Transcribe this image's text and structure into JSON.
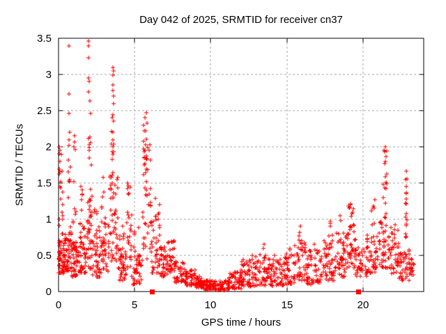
{
  "chart_data": {
    "type": "scatter",
    "title": "Day 042 of 2025, SRMTID for receiver cn37",
    "xlabel": "GPS time / hours",
    "ylabel": "SRMTID / TECUs",
    "xlim": [
      0,
      24
    ],
    "ylim": [
      0,
      3.5
    ],
    "xticks": {
      "values": [
        0,
        5,
        10,
        15,
        20
      ],
      "labels": [
        "0",
        "5",
        "10",
        "15",
        "20"
      ]
    },
    "yticks": {
      "values": [
        0,
        0.5,
        1,
        1.5,
        2,
        2.5,
        3,
        3.5
      ],
      "labels": [
        "0",
        "0.5",
        "1",
        "1.5",
        "2",
        "2.5",
        "3",
        "3.5"
      ]
    },
    "grid": {
      "show": true,
      "style": "dashed"
    },
    "legend": "none",
    "colors": {
      "points": "#ff0000",
      "grid": "#a8a8a8",
      "axis": "#000000",
      "text": "#000000",
      "background": "#ffffff"
    },
    "series": [
      {
        "name": "SRMTID values",
        "marker": "plus",
        "color": "#ff0000",
        "summary": "Dense scatter over 0-23.4 h: strong activity 0-7 h (peaks 3.39-3.46 at 0.7 h and 2.0 h, 3.1 at 3.6 h, 2.47 at 5.8 h), quiet 9-11.5 h (~0.02-0.16), moderate evening rise with peaks 1.21 at 19.2 h, 2.0 at 21.5 h, 1.66 at 22.85 h",
        "outliers": [
          [
            0.05,
            2.0
          ],
          [
            0.08,
            1.95
          ],
          [
            0.05,
            1.9
          ],
          [
            0.1,
            1.8
          ],
          [
            0.07,
            1.65
          ],
          [
            0.12,
            1.52
          ],
          [
            0.1,
            1.45
          ],
          [
            0.15,
            1.28
          ],
          [
            0.06,
            1.0
          ],
          [
            0.69,
            3.39
          ],
          [
            0.69,
            2.73
          ],
          [
            0.69,
            2.46
          ],
          [
            0.72,
            2.2
          ],
          [
            0.67,
            2.1
          ],
          [
            0.7,
            2.02
          ],
          [
            0.66,
            1.82
          ],
          [
            0.71,
            1.55
          ],
          [
            0.64,
            1.3
          ],
          [
            1.05,
            2.15
          ],
          [
            1.02,
            2.0
          ],
          [
            1.97,
            3.46
          ],
          [
            1.99,
            3.39
          ],
          [
            1.98,
            3.23
          ],
          [
            1.96,
            2.95
          ],
          [
            2.0,
            2.9
          ],
          [
            1.97,
            2.76
          ],
          [
            2.06,
            2.63
          ],
          [
            2.1,
            2.46
          ],
          [
            1.98,
            2.12
          ],
          [
            2.03,
            1.95
          ],
          [
            3.57,
            3.1
          ],
          [
            3.6,
            3.05
          ],
          [
            3.56,
            2.99
          ],
          [
            3.58,
            2.86
          ],
          [
            3.55,
            2.78
          ],
          [
            3.62,
            2.7
          ],
          [
            3.6,
            2.6
          ],
          [
            3.57,
            2.44
          ],
          [
            3.52,
            2.4
          ],
          [
            3.6,
            2.36
          ],
          [
            3.55,
            2.2
          ],
          [
            3.58,
            2.1
          ],
          [
            3.56,
            2.0
          ],
          [
            5.75,
            2.47
          ],
          [
            5.68,
            2.4
          ],
          [
            5.82,
            2.33
          ],
          [
            5.6,
            2.3
          ],
          [
            12.75,
            0.5
          ],
          [
            13.5,
            0.65
          ],
          [
            13.45,
            0.6
          ],
          [
            14.2,
            0.5
          ],
          [
            15.2,
            0.6
          ],
          [
            15.9,
            0.9
          ],
          [
            15.85,
            0.82
          ],
          [
            16.8,
            0.65
          ],
          [
            17.85,
            0.97
          ],
          [
            18.5,
            1.05
          ],
          [
            18.55,
            0.98
          ],
          [
            19.2,
            1.21
          ],
          [
            19.1,
            1.15
          ],
          [
            19.3,
            1.08
          ],
          [
            20.8,
            1.27
          ],
          [
            20.75,
            1.15
          ],
          [
            21.5,
            2.0
          ],
          [
            21.45,
            1.93
          ],
          [
            21.52,
            1.87
          ],
          [
            21.47,
            1.8
          ],
          [
            22.85,
            1.66
          ],
          [
            22.83,
            1.55
          ],
          [
            22.86,
            1.45
          ],
          [
            22.84,
            1.36
          ],
          [
            22.85,
            1.21
          ],
          [
            22.86,
            1.08
          ],
          [
            22.84,
            0.93
          ],
          [
            22.85,
            0.76
          ]
        ],
        "cluster_format": [
          "x_start",
          "x_end",
          "y_min",
          "y_max",
          "count",
          "bottom_bias_exponent"
        ],
        "clusters": [
          [
            0.0,
            0.15,
            0.25,
            0.78,
            25,
            1.3
          ],
          [
            0.02,
            0.3,
            0.9,
            2.0,
            11,
            1.0
          ],
          [
            0.15,
            0.65,
            0.25,
            0.8,
            55,
            1.5
          ],
          [
            0.6,
            0.85,
            0.3,
            0.9,
            25,
            1.2
          ],
          [
            0.62,
            0.8,
            1.25,
            1.85,
            4,
            1.0
          ],
          [
            0.85,
            1.35,
            0.2,
            0.7,
            50,
            1.4
          ],
          [
            0.95,
            1.2,
            0.9,
            1.3,
            5,
            1.0
          ],
          [
            1.0,
            1.1,
            1.5,
            2.18,
            3,
            1.0
          ],
          [
            1.35,
            1.85,
            0.25,
            0.95,
            45,
            1.4
          ],
          [
            1.45,
            1.6,
            1.1,
            1.78,
            6,
            1.0
          ],
          [
            1.9,
            2.2,
            0.3,
            1.35,
            40,
            1.3
          ],
          [
            1.95,
            2.15,
            1.4,
            2.15,
            7,
            1.0
          ],
          [
            2.2,
            2.7,
            0.2,
            0.95,
            40,
            1.4
          ],
          [
            2.25,
            2.55,
            1.0,
            1.35,
            4,
            1.0
          ],
          [
            2.7,
            3.35,
            0.25,
            1.05,
            45,
            1.4
          ],
          [
            2.85,
            3.05,
            1.1,
            1.58,
            5,
            1.0
          ],
          [
            3.4,
            3.9,
            0.4,
            1.65,
            50,
            1.2
          ],
          [
            3.45,
            3.75,
            1.7,
            2.25,
            8,
            1.0
          ],
          [
            3.9,
            4.45,
            0.15,
            0.6,
            40,
            1.3
          ],
          [
            4.0,
            4.3,
            0.65,
            0.95,
            6,
            1.0
          ],
          [
            4.45,
            4.8,
            0.3,
            1.1,
            22,
            1.2
          ],
          [
            4.5,
            4.7,
            1.3,
            1.52,
            6,
            1.0
          ],
          [
            4.8,
            5.45,
            0.1,
            0.5,
            40,
            1.3
          ],
          [
            4.9,
            5.3,
            0.55,
            0.9,
            6,
            1.0
          ],
          [
            5.45,
            6.1,
            0.4,
            1.55,
            30,
            1.1
          ],
          [
            5.5,
            6.05,
            1.6,
            2.28,
            24,
            1.0
          ],
          [
            6.1,
            6.7,
            0.25,
            1.3,
            45,
            1.5
          ],
          [
            6.7,
            7.15,
            0.2,
            0.62,
            35,
            1.3
          ],
          [
            7.15,
            7.6,
            0.25,
            0.72,
            30,
            1.2
          ],
          [
            7.6,
            8.3,
            0.12,
            0.42,
            45,
            1.3
          ],
          [
            8.3,
            9.0,
            0.08,
            0.3,
            45,
            1.3
          ],
          [
            9.0,
            9.6,
            0.05,
            0.22,
            45,
            1.3
          ],
          [
            9.6,
            11.2,
            0.02,
            0.16,
            95,
            1.3
          ],
          [
            11.2,
            12.0,
            0.04,
            0.27,
            55,
            1.3
          ],
          [
            12.0,
            12.9,
            0.07,
            0.45,
            55,
            1.4
          ],
          [
            12.9,
            13.8,
            0.08,
            0.52,
            55,
            1.5
          ],
          [
            13.8,
            14.8,
            0.08,
            0.45,
            55,
            1.4
          ],
          [
            14.8,
            15.5,
            0.1,
            0.58,
            42,
            1.4
          ],
          [
            15.5,
            16.3,
            0.15,
            0.78,
            50,
            1.4
          ],
          [
            16.3,
            17.2,
            0.1,
            0.58,
            50,
            1.4
          ],
          [
            17.2,
            18.2,
            0.15,
            0.72,
            55,
            1.4
          ],
          [
            17.75,
            18.0,
            0.75,
            0.95,
            4,
            1.0
          ],
          [
            18.2,
            18.85,
            0.2,
            0.85,
            40,
            1.3
          ],
          [
            18.85,
            19.5,
            0.3,
            0.95,
            45,
            1.2
          ],
          [
            18.95,
            19.4,
            1.0,
            1.22,
            6,
            1.0
          ],
          [
            19.5,
            20.25,
            0.2,
            0.62,
            40,
            1.3
          ],
          [
            20.25,
            21.0,
            0.25,
            0.8,
            45,
            1.3
          ],
          [
            20.55,
            20.85,
            0.85,
            1.27,
            5,
            1.0
          ],
          [
            21.0,
            21.7,
            0.3,
            0.98,
            40,
            1.3
          ],
          [
            21.35,
            21.6,
            1.0,
            2.0,
            15,
            1.0
          ],
          [
            21.7,
            22.4,
            0.25,
            0.95,
            45,
            1.3
          ],
          [
            22.4,
            23.1,
            0.15,
            0.58,
            42,
            1.3
          ],
          [
            22.78,
            22.92,
            0.7,
            1.67,
            9,
            1.0
          ],
          [
            23.05,
            23.35,
            0.2,
            0.48,
            18,
            1.2
          ]
        ]
      },
      {
        "name": "flagged markers on axis",
        "marker": "filled-square",
        "color": "#ff0000",
        "points": [
          [
            6.15,
            0
          ],
          [
            19.7,
            0
          ]
        ]
      }
    ]
  }
}
